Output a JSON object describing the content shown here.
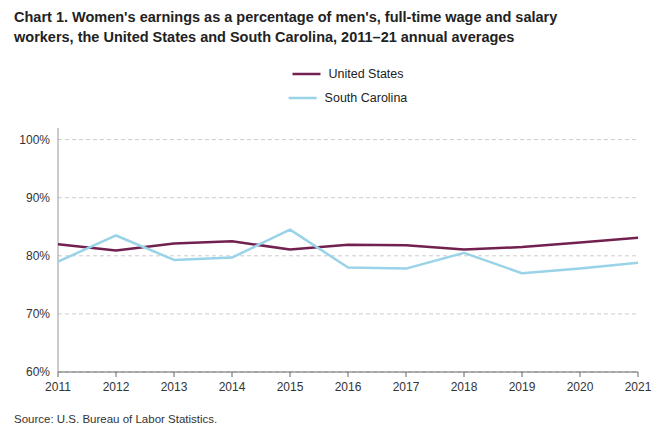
{
  "chart_data": {
    "type": "line",
    "title": [
      "Chart 1. Women's earnings as a percentage of men's, full-time wage and salary",
      "workers, the United States and South Carolina, 2011–21 annual averages"
    ],
    "x": [
      2011,
      2012,
      2013,
      2014,
      2015,
      2016,
      2017,
      2018,
      2019,
      2020,
      2021
    ],
    "series": [
      {
        "name": "United States",
        "color": "#722050",
        "values": [
          82.0,
          80.9,
          82.1,
          82.5,
          81.1,
          81.9,
          81.8,
          81.1,
          81.5,
          82.3,
          83.1
        ]
      },
      {
        "name": "South Carolina",
        "color": "#99d3e8",
        "values": [
          79.0,
          83.5,
          79.3,
          79.7,
          84.5,
          78.0,
          77.8,
          80.5,
          77.0,
          77.8,
          78.8
        ]
      }
    ],
    "xlim": [
      2011,
      2021
    ],
    "xticks": [
      2011,
      2012,
      2013,
      2014,
      2015,
      2016,
      2017,
      2018,
      2019,
      2020,
      2021
    ],
    "ylim": [
      60,
      102
    ],
    "yticks": [
      {
        "value": 60,
        "label": "60%"
      },
      {
        "value": 70,
        "label": "70%"
      },
      {
        "value": 80,
        "label": "80%"
      },
      {
        "value": 90,
        "label": "90%"
      },
      {
        "value": 100,
        "label": "100%"
      }
    ],
    "grid": true,
    "legend": "top",
    "source": "Source:  U.S. Bureau of Labor Statistics."
  }
}
